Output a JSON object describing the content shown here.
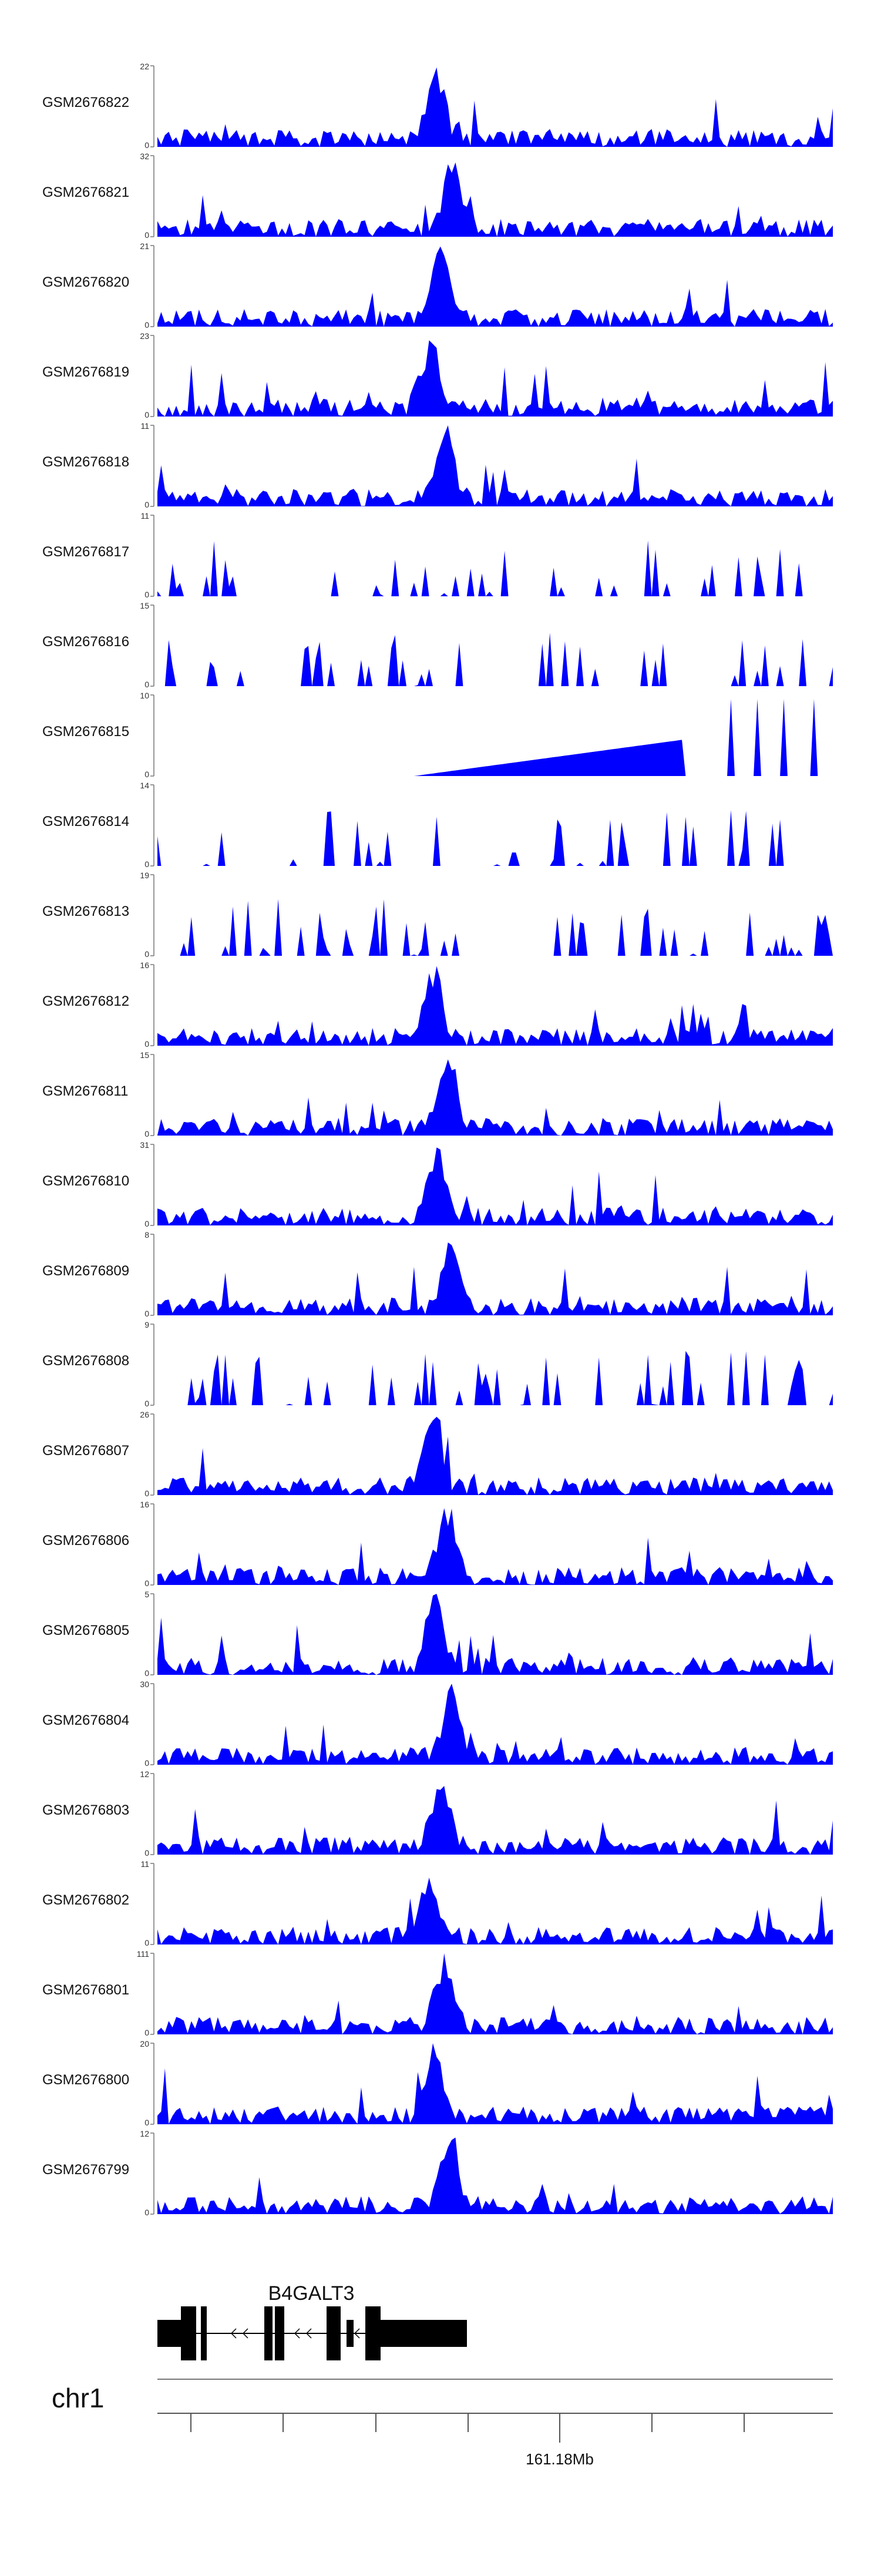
{
  "tracks": [
    {
      "name": "GSM2676822",
      "ymax": "22",
      "ymin": "0"
    },
    {
      "name": "GSM2676821",
      "ymax": "32",
      "ymin": "0"
    },
    {
      "name": "GSM2676820",
      "ymax": "21",
      "ymin": "0"
    },
    {
      "name": "GSM2676819",
      "ymax": "23",
      "ymin": "0"
    },
    {
      "name": "GSM2676818",
      "ymax": "11",
      "ymin": "0"
    },
    {
      "name": "GSM2676817",
      "ymax": "11",
      "ymin": "0"
    },
    {
      "name": "GSM2676816",
      "ymax": "15",
      "ymin": "0"
    },
    {
      "name": "GSM2676815",
      "ymax": "10",
      "ymin": "0"
    },
    {
      "name": "GSM2676814",
      "ymax": "14",
      "ymin": "0"
    },
    {
      "name": "GSM2676813",
      "ymax": "19",
      "ymin": "0"
    },
    {
      "name": "GSM2676812",
      "ymax": "16",
      "ymin": "0"
    },
    {
      "name": "GSM2676811",
      "ymax": "15",
      "ymin": "0"
    },
    {
      "name": "GSM2676810",
      "ymax": "31",
      "ymin": "0"
    },
    {
      "name": "GSM2676809",
      "ymax": "8",
      "ymin": "0"
    },
    {
      "name": "GSM2676808",
      "ymax": "9",
      "ymin": "0"
    },
    {
      "name": "GSM2676807",
      "ymax": "26",
      "ymin": "0"
    },
    {
      "name": "GSM2676806",
      "ymax": "16",
      "ymin": "0"
    },
    {
      "name": "GSM2676805",
      "ymax": "5",
      "ymin": "0"
    },
    {
      "name": "GSM2676804",
      "ymax": "30",
      "ymin": "0"
    },
    {
      "name": "GSM2676803",
      "ymax": "12",
      "ymin": "0"
    },
    {
      "name": "GSM2676802",
      "ymax": "11",
      "ymin": "0"
    },
    {
      "name": "GSM2676801",
      "ymax": "111",
      "ymin": "0"
    },
    {
      "name": "GSM2676800",
      "ymax": "20",
      "ymin": "0"
    },
    {
      "name": "GSM2676799",
      "ymax": "12",
      "ymin": "0"
    }
  ],
  "gene": {
    "name": "B4GALT3"
  },
  "chromosome": {
    "label": "chr1"
  },
  "axis": {
    "tick_label": "161.18Mb"
  },
  "colors": {
    "signal": "#0000ff",
    "gene": "#000000",
    "axis": "#555555",
    "text": "#111111"
  }
}
